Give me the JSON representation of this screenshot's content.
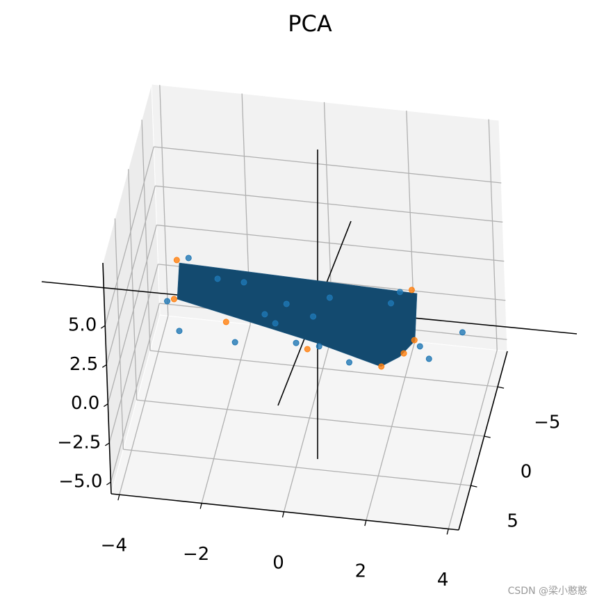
{
  "chart_data": {
    "type": "scatter3d",
    "title": "PCA",
    "xlim": [
      -4.2,
      4.25
    ],
    "ylim": [
      -8.6,
      9.5
    ],
    "zlim": [
      -5.75,
      9
    ],
    "xticks": [
      {
        "value": -4,
        "label": "−4"
      },
      {
        "value": -2,
        "label": "−2"
      },
      0,
      2,
      4
    ],
    "yticks": [
      {
        "value": -5,
        "label": "−5"
      },
      0,
      5
    ],
    "zticks": [
      {
        "value": -5,
        "label": "−5.0"
      },
      {
        "value": -2.5,
        "label": "−2.5"
      },
      {
        "value": 0,
        "label": "0.0"
      },
      2.5,
      {
        "value": 5,
        "label": "5.0"
      }
    ],
    "grid": true,
    "series": [
      {
        "color": "#1f77b4",
        "x": [
          -2.81,
          -3.37,
          -3.1,
          -1.75,
          -2.12,
          -1.48,
          -1.0,
          -0.75,
          -0.46,
          -0.26,
          0.18,
          0.3,
          0.6,
          1.02,
          2.09,
          2.32,
          2.76,
          2.97,
          3.81
        ],
        "y": [
          0,
          0,
          0,
          0,
          0,
          0,
          0,
          0,
          0,
          0,
          0,
          0,
          0,
          0,
          0,
          0,
          0,
          0,
          0
        ],
        "z": [
          3.7,
          0.79,
          -1.04,
          -1.39,
          2.56,
          2.51,
          0.6,
          0.09,
          1.41,
          -1.03,
          0.78,
          -1.09,
          2.1,
          -1.92,
          2.15,
          2.93,
          -0.42,
          -1.16,
          0.76
        ]
      },
      {
        "color": "#ff7f0e",
        "x": [
          -3.1,
          -3.2,
          -1.95,
          0.01,
          1.8,
          2.36,
          2.61,
          2.63
        ],
        "y": [
          0,
          0,
          0,
          0,
          0,
          0,
          0,
          0
        ],
        "z": [
          3.49,
          0.97,
          -0.15,
          -1.35,
          -1.97,
          -0.98,
          3.14,
          -0.06
        ]
      }
    ],
    "watermark": "CSDN @梁小憨憨"
  }
}
